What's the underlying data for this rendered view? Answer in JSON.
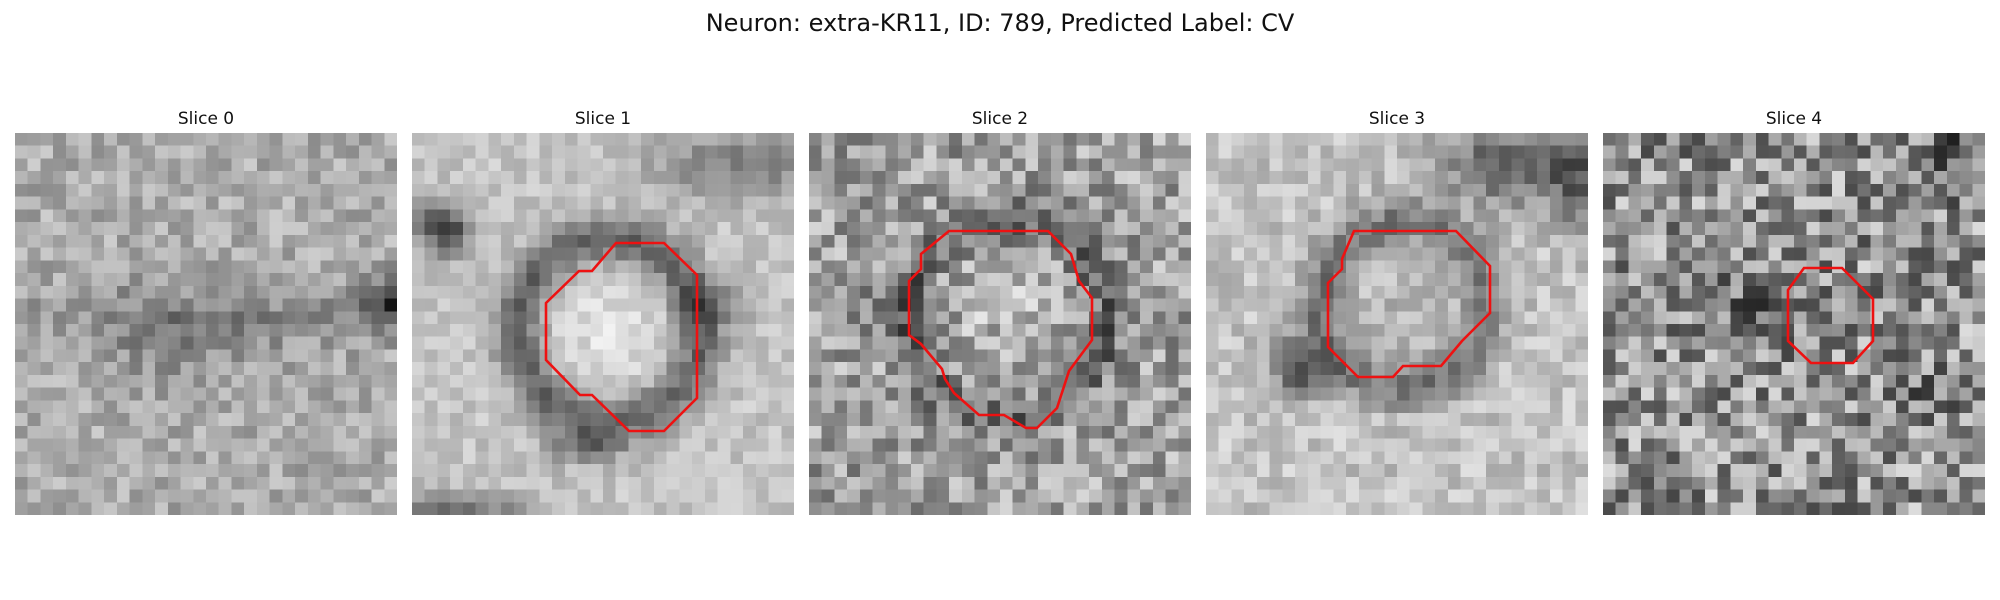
{
  "figure": {
    "title": "Neuron: extra-KR11, ID: 789, Predicted Label: CV"
  },
  "panels": [
    {
      "title": "Slice 0",
      "has_outline": false
    },
    {
      "title": "Slice 1",
      "has_outline": true
    },
    {
      "title": "Slice 2",
      "has_outline": true
    },
    {
      "title": "Slice 3",
      "has_outline": true
    },
    {
      "title": "Slice 4",
      "has_outline": true
    }
  ],
  "colors": {
    "outline": "#ee1111",
    "colormap": "grayscale"
  }
}
